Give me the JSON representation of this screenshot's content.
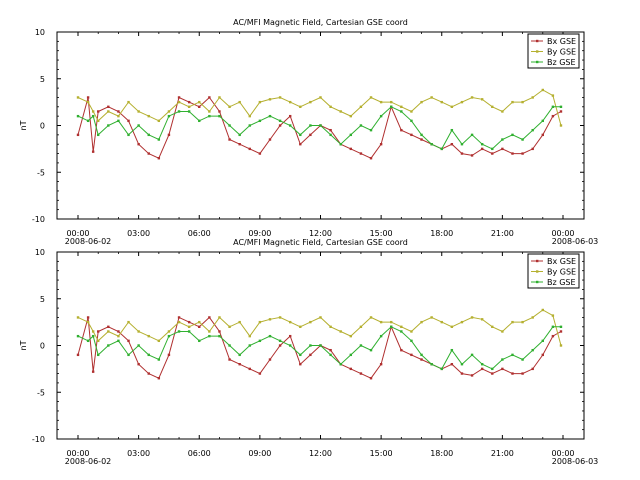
{
  "chart_data": [
    {
      "type": "line",
      "title": "AC/MFI  Magnetic Field, Cartesian GSE coord",
      "ylabel": "nT",
      "xlabel": "",
      "ylim": [
        -10,
        10
      ],
      "yticks": [
        10,
        5,
        0,
        -5,
        -10
      ],
      "xlim": [
        "2008-06-02 00:00",
        "2008-06-03 00:00"
      ],
      "xticks": [
        "00:00",
        "03:00",
        "06:00",
        "09:00",
        "12:00",
        "15:00",
        "18:00",
        "21:00",
        "00:00"
      ],
      "x_date_start": "2008-06-02",
      "x_date_end": "2008-06-03",
      "legend_position": "top-right",
      "grid": false,
      "x_hours": [
        0.0,
        0.5,
        0.75,
        1.0,
        1.5,
        2.0,
        2.5,
        3.0,
        3.5,
        4.0,
        4.5,
        5.0,
        5.5,
        6.0,
        6.5,
        7.0,
        7.5,
        8.0,
        8.5,
        9.0,
        9.5,
        10.0,
        10.5,
        11.0,
        11.5,
        12.0,
        12.5,
        13.0,
        13.5,
        14.0,
        14.5,
        15.0,
        15.5,
        16.0,
        16.5,
        17.0,
        17.5,
        18.0,
        18.5,
        19.0,
        19.5,
        20.0,
        20.5,
        21.0,
        21.5,
        22.0,
        22.5,
        23.0,
        23.5,
        23.9
      ],
      "series": [
        {
          "name": "Bx GSE",
          "color": "#b03030",
          "values": [
            -1.0,
            3.0,
            -2.8,
            1.5,
            2.0,
            1.5,
            0.5,
            -2.0,
            -3.0,
            -3.5,
            -1.0,
            3.0,
            2.5,
            2.0,
            3.0,
            1.5,
            -1.5,
            -2.0,
            -2.5,
            -3.0,
            -1.5,
            0.0,
            1.0,
            -2.0,
            -1.0,
            0.0,
            -0.5,
            -2.0,
            -2.5,
            -3.0,
            -3.5,
            -2.0,
            2.0,
            -0.5,
            -1.0,
            -1.5,
            -2.0,
            -2.5,
            -2.0,
            -3.0,
            -3.2,
            -2.5,
            -3.0,
            -2.5,
            -3.0,
            -3.0,
            -2.5,
            -1.0,
            1.0,
            1.5
          ]
        },
        {
          "name": "By GSE",
          "color": "#b5b030",
          "values": [
            3.0,
            2.5,
            1.5,
            0.5,
            1.5,
            1.0,
            2.5,
            1.5,
            1.0,
            0.5,
            1.5,
            2.5,
            2.0,
            2.5,
            1.5,
            3.0,
            2.0,
            2.5,
            1.0,
            2.5,
            2.8,
            3.0,
            2.5,
            2.0,
            2.5,
            3.0,
            2.0,
            1.5,
            1.0,
            2.0,
            3.0,
            2.5,
            2.5,
            2.0,
            1.5,
            2.5,
            3.0,
            2.5,
            2.0,
            2.5,
            3.0,
            2.8,
            2.0,
            1.5,
            2.5,
            2.5,
            3.0,
            3.8,
            3.2,
            0.0
          ]
        },
        {
          "name": "Bz GSE",
          "color": "#30b030",
          "values": [
            1.0,
            0.5,
            1.0,
            -1.0,
            0.0,
            0.5,
            -1.0,
            0.0,
            -1.0,
            -1.5,
            1.0,
            1.5,
            1.5,
            0.5,
            1.0,
            1.0,
            0.0,
            -1.0,
            0.0,
            0.5,
            1.0,
            0.5,
            0.0,
            -1.0,
            0.0,
            0.0,
            -1.0,
            -2.0,
            -1.0,
            0.0,
            -0.5,
            1.0,
            2.0,
            1.5,
            0.5,
            -1.0,
            -2.0,
            -2.5,
            -0.5,
            -2.0,
            -1.0,
            -2.0,
            -2.5,
            -1.5,
            -1.0,
            -1.5,
            -0.5,
            0.5,
            2.0,
            2.0
          ]
        }
      ]
    },
    {
      "type": "line",
      "title": "AC/MFI  Magnetic Field, Cartesian GSE coord",
      "ylabel": "nT",
      "xlabel": "",
      "ylim": [
        -10,
        10
      ],
      "yticks": [
        10,
        5,
        0,
        -5,
        -10
      ],
      "xlim": [
        "2008-06-02 00:00",
        "2008-06-03 00:00"
      ],
      "xticks": [
        "00:00",
        "03:00",
        "06:00",
        "09:00",
        "12:00",
        "15:00",
        "18:00",
        "21:00",
        "00:00"
      ],
      "x_date_start": "2008-06-02",
      "x_date_end": "2008-06-03",
      "legend_position": "top-right",
      "grid": false,
      "x_hours": [
        0.0,
        0.5,
        0.75,
        1.0,
        1.5,
        2.0,
        2.5,
        3.0,
        3.5,
        4.0,
        4.5,
        5.0,
        5.5,
        6.0,
        6.5,
        7.0,
        7.5,
        8.0,
        8.5,
        9.0,
        9.5,
        10.0,
        10.5,
        11.0,
        11.5,
        12.0,
        12.5,
        13.0,
        13.5,
        14.0,
        14.5,
        15.0,
        15.5,
        16.0,
        16.5,
        17.0,
        17.5,
        18.0,
        18.5,
        19.0,
        19.5,
        20.0,
        20.5,
        21.0,
        21.5,
        22.0,
        22.5,
        23.0,
        23.5,
        23.9
      ],
      "series": [
        {
          "name": "Bx GSE",
          "color": "#b03030",
          "values": [
            -1.0,
            3.0,
            -2.8,
            1.5,
            2.0,
            1.5,
            0.5,
            -2.0,
            -3.0,
            -3.5,
            -1.0,
            3.0,
            2.5,
            2.0,
            3.0,
            1.5,
            -1.5,
            -2.0,
            -2.5,
            -3.0,
            -1.5,
            0.0,
            1.0,
            -2.0,
            -1.0,
            0.0,
            -0.5,
            -2.0,
            -2.5,
            -3.0,
            -3.5,
            -2.0,
            2.0,
            -0.5,
            -1.0,
            -1.5,
            -2.0,
            -2.5,
            -2.0,
            -3.0,
            -3.2,
            -2.5,
            -3.0,
            -2.5,
            -3.0,
            -3.0,
            -2.5,
            -1.0,
            1.0,
            1.5
          ]
        },
        {
          "name": "By GSE",
          "color": "#b5b030",
          "values": [
            3.0,
            2.5,
            1.5,
            0.5,
            1.5,
            1.0,
            2.5,
            1.5,
            1.0,
            0.5,
            1.5,
            2.5,
            2.0,
            2.5,
            1.5,
            3.0,
            2.0,
            2.5,
            1.0,
            2.5,
            2.8,
            3.0,
            2.5,
            2.0,
            2.5,
            3.0,
            2.0,
            1.5,
            1.0,
            2.0,
            3.0,
            2.5,
            2.5,
            2.0,
            1.5,
            2.5,
            3.0,
            2.5,
            2.0,
            2.5,
            3.0,
            2.8,
            2.0,
            1.5,
            2.5,
            2.5,
            3.0,
            3.8,
            3.2,
            0.0
          ]
        },
        {
          "name": "Bz GSE",
          "color": "#30b030",
          "values": [
            1.0,
            0.5,
            1.0,
            -1.0,
            0.0,
            0.5,
            -1.0,
            0.0,
            -1.0,
            -1.5,
            1.0,
            1.5,
            1.5,
            0.5,
            1.0,
            1.0,
            0.0,
            -1.0,
            0.0,
            0.5,
            1.0,
            0.5,
            0.0,
            -1.0,
            0.0,
            0.0,
            -1.0,
            -2.0,
            -1.0,
            0.0,
            -0.5,
            1.0,
            2.0,
            1.5,
            0.5,
            -1.0,
            -2.0,
            -2.5,
            -0.5,
            -2.0,
            -1.0,
            -2.0,
            -2.5,
            -1.5,
            -1.0,
            -1.5,
            -0.5,
            0.5,
            2.0,
            2.0
          ]
        }
      ]
    }
  ]
}
